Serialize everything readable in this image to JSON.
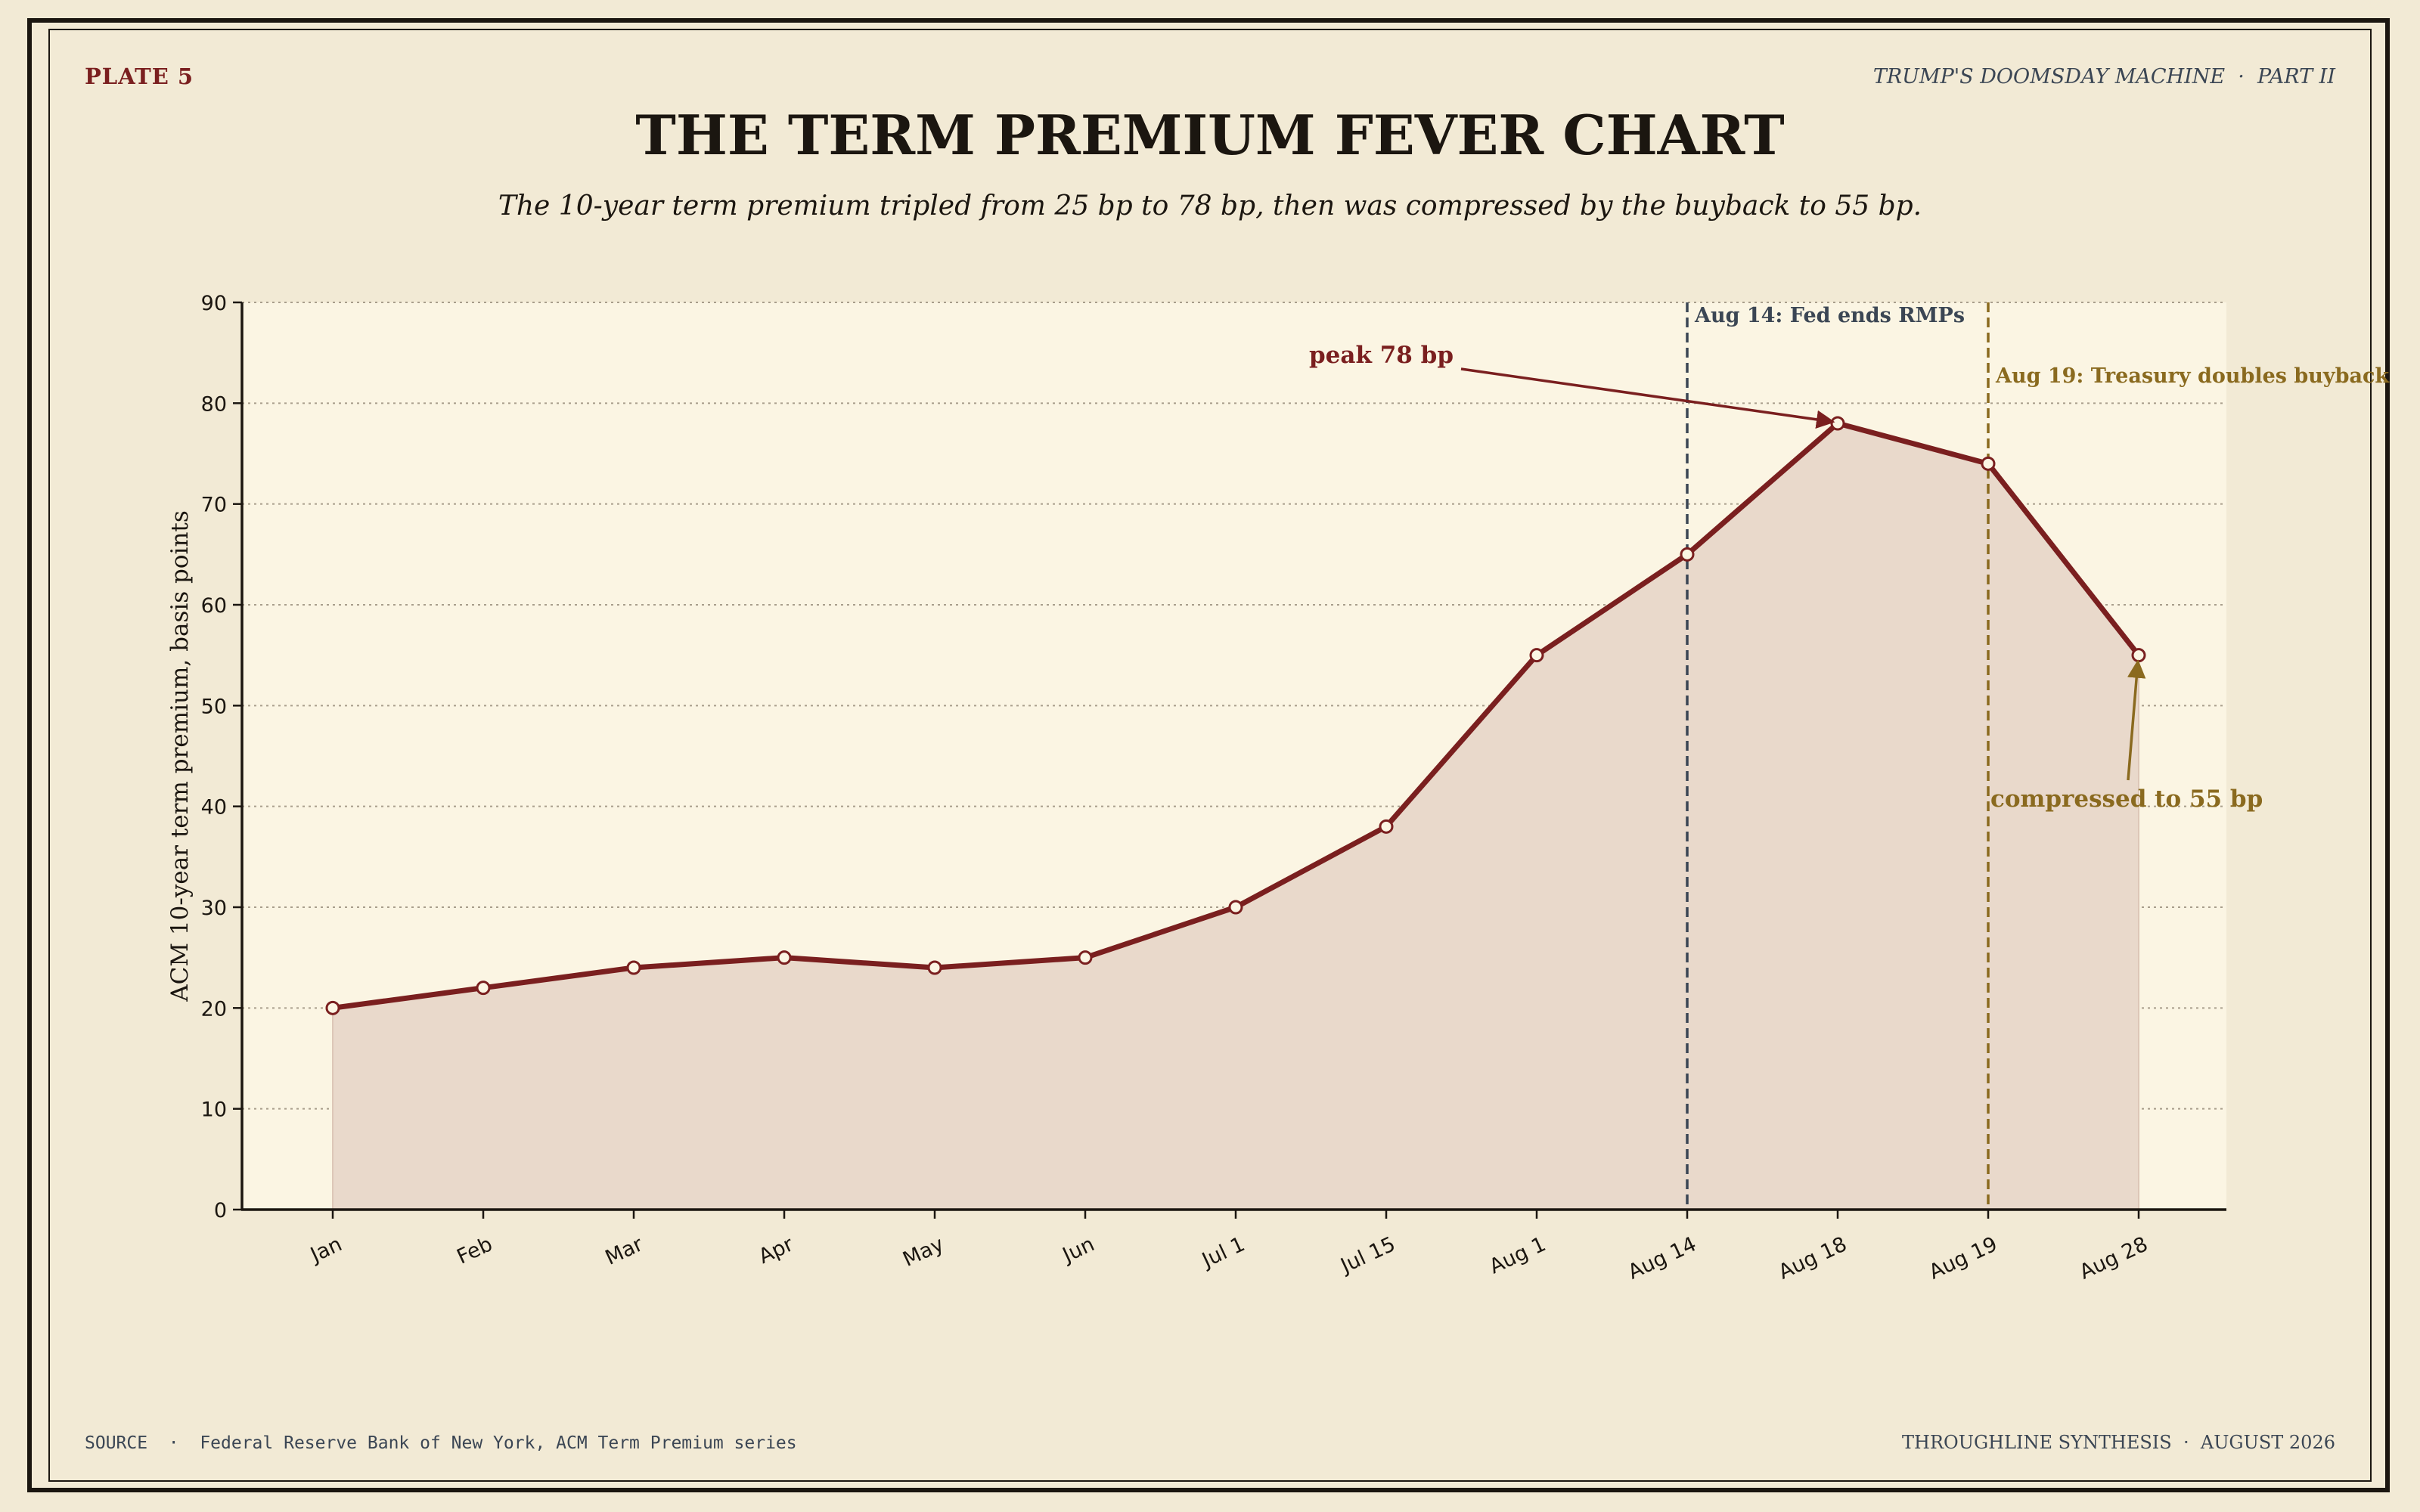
{
  "header": {
    "plate": "PLATE 5",
    "series": "TRUMP'S DOOMSDAY MACHINE  ·  PART II",
    "title": "THE TERM PREMIUM FEVER CHART",
    "subtitle": "The 10-year term premium tripled from 25 bp to 78 bp, then was compressed by the buyback to 55 bp."
  },
  "footer": {
    "source": "SOURCE  ·  Federal Reserve Bank of New York, ACM Term Premium series",
    "credit": "THROUGHLINE SYNTHESIS  ·  AUGUST 2026"
  },
  "colors": {
    "page_bg": "#f2ead5",
    "plot_bg": "#fbf5e3",
    "line": "#7a1f1f",
    "fill": "#e9d9cb",
    "vline_fed": "#3b4654",
    "vline_treasury": "#8a6a1f"
  },
  "chart_data": {
    "type": "line",
    "categories": [
      "Jan",
      "Feb",
      "Mar",
      "Apr",
      "May",
      "Jun",
      "Jul 1",
      "Jul 15",
      "Aug 1",
      "Aug 14",
      "Aug 18",
      "Aug 19",
      "Aug 28"
    ],
    "values": [
      20,
      22,
      24,
      25,
      24,
      25,
      30,
      38,
      55,
      65,
      78,
      74,
      55
    ],
    "title": "THE TERM PREMIUM FEVER CHART",
    "xlabel": "",
    "ylabel": "ACM 10-year term premium, basis points",
    "ylim": [
      0,
      90
    ],
    "yticks": [
      0,
      10,
      20,
      30,
      40,
      50,
      60,
      70,
      80,
      90
    ],
    "grid": true,
    "area_fill": true,
    "vertical_lines": [
      {
        "category": "Aug 14",
        "label": "Aug 14: Fed ends RMPs",
        "color": "#3b4654"
      },
      {
        "category": "Aug 19",
        "label": "Aug 19: Treasury doubles buyback",
        "color": "#8a6a1f"
      }
    ],
    "annotations": [
      {
        "text": "peak 78 bp",
        "category": "Aug 18",
        "value": 78,
        "color": "#7a1f1f"
      },
      {
        "text": "compressed to 55 bp",
        "category": "Aug 28",
        "value": 55,
        "color": "#8a6a1f"
      }
    ]
  }
}
